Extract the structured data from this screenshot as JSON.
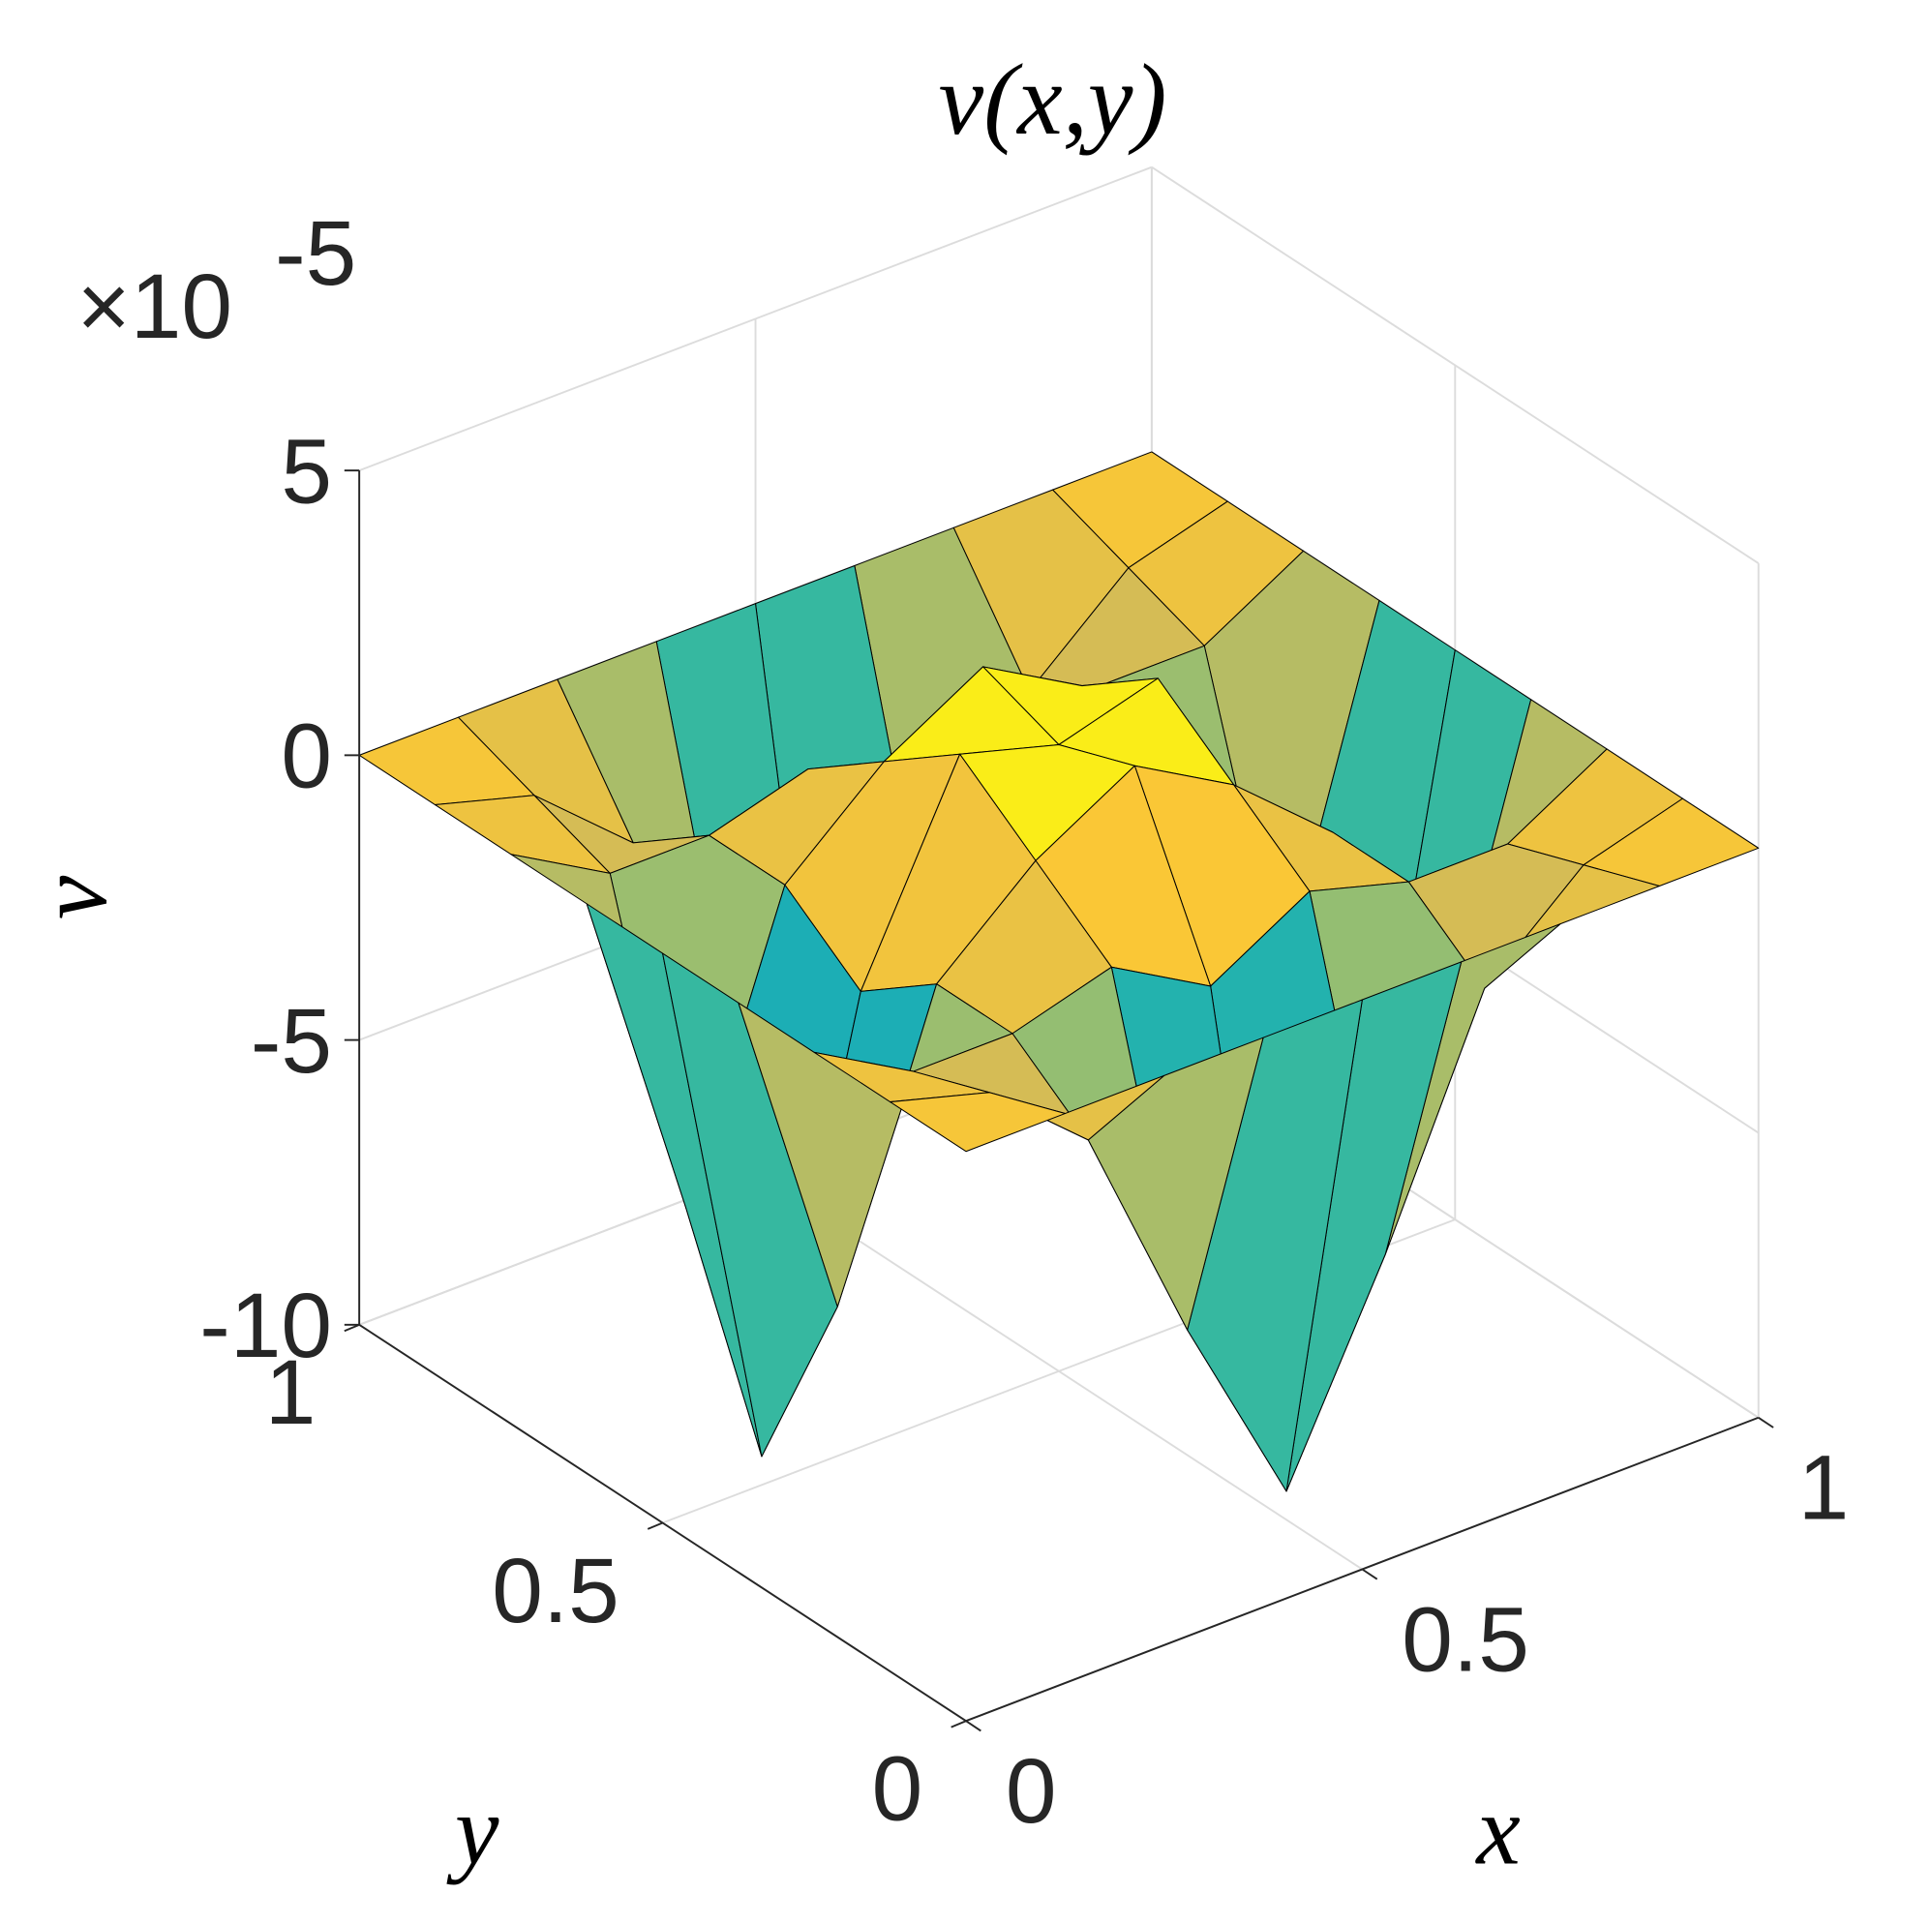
{
  "chart_data": {
    "type": "surface",
    "title": "v(x,y)",
    "xlabel": "x",
    "ylabel": "y",
    "zlabel": "v",
    "zscale": {
      "base": "×10",
      "exponent": "-5"
    },
    "x": [
      0,
      0.125,
      0.25,
      0.375,
      0.5,
      0.625,
      0.75,
      0.875,
      1
    ],
    "y": [
      0,
      0.125,
      0.25,
      0.375,
      0.5,
      0.625,
      0.75,
      0.875,
      1
    ],
    "z": [
      [
        0,
        0,
        0,
        0,
        0,
        0,
        0,
        0,
        0
      ],
      [
        0,
        -0.5,
        -2,
        -6,
        -9.5,
        -6,
        -2,
        -0.5,
        0
      ],
      [
        0,
        -1,
        -1,
        -0.5,
        -1.5,
        -0.5,
        -1,
        -1,
        0
      ],
      [
        0,
        -6,
        -1,
        0.5,
        1.5,
        0.5,
        -1,
        -6,
        0
      ],
      [
        0,
        -9.5,
        -2,
        1.5,
        1,
        1.5,
        -2,
        -9.5,
        0
      ],
      [
        0,
        -6,
        -1,
        0.5,
        1.5,
        0.5,
        -1,
        -6,
        0
      ],
      [
        0,
        -1,
        -1,
        -0.5,
        -1.5,
        -0.5,
        -1,
        -1,
        0
      ],
      [
        0,
        -0.5,
        -2,
        -6,
        -9.5,
        -6,
        -2,
        -0.5,
        0
      ],
      [
        0,
        0,
        0,
        0,
        0,
        0,
        0,
        0,
        0
      ]
    ],
    "xlim": [
      0,
      1
    ],
    "ylim": [
      0,
      1
    ],
    "zlim": [
      -10,
      5
    ],
    "xticks": [
      0,
      0.5,
      1
    ],
    "yticks": [
      0,
      0.5,
      1
    ],
    "zticks": [
      -10,
      -5,
      0,
      5
    ],
    "grid": true,
    "colormap": [
      "#352a87",
      "#0f5cdd",
      "#1481d6",
      "#06a4ca",
      "#2eb7a4",
      "#87bf77",
      "#d1bb59",
      "#fec832",
      "#f9fb0e"
    ],
    "edgecolor": "#000000"
  }
}
